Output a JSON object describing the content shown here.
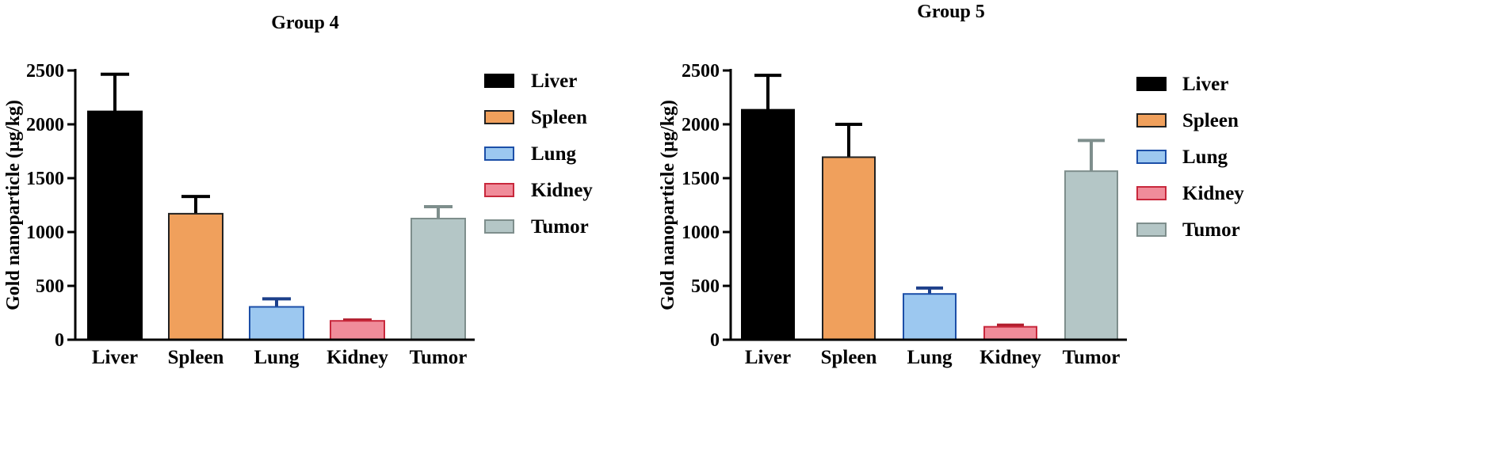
{
  "chart_data": [
    {
      "type": "bar",
      "title": "Group 4",
      "ylabel": "Gold nanoparticle (µg/kg)",
      "xlabel": "",
      "categories": [
        "Liver",
        "Spleen",
        "Lung",
        "Kidney",
        "Tumor"
      ],
      "values": [
        2120,
        1170,
        305,
        175,
        1125
      ],
      "errors": [
        345,
        160,
        75,
        8,
        110
      ],
      "ylim": [
        0,
        2500
      ],
      "yticks": [
        "0",
        "500",
        "1000",
        "1500",
        "2000",
        "2500"
      ],
      "legend": [
        "Liver",
        "Spleen",
        "Lung",
        "Kidney",
        "Tumor"
      ],
      "legend_position": "right",
      "grid": false
    },
    {
      "type": "bar",
      "title": "Group 5",
      "ylabel": "Gold nanoparticle (µg/kg)",
      "xlabel": "",
      "categories": [
        "Liver",
        "Spleen",
        "Lung",
        "Kidney",
        "Tumor"
      ],
      "values": [
        2135,
        1695,
        425,
        120,
        1565
      ],
      "errors": [
        320,
        305,
        55,
        15,
        285
      ],
      "ylim": [
        0,
        2500
      ],
      "yticks": [
        "0",
        "500",
        "1000",
        "1500",
        "2000",
        "2500"
      ],
      "legend": [
        "Liver",
        "Spleen",
        "Lung",
        "Kidney",
        "Tumor"
      ],
      "legend_position": "right",
      "grid": false
    }
  ],
  "colors": {
    "Liver": {
      "fill": "#000000",
      "stroke": "#000000",
      "error": "#000000"
    },
    "Spleen": {
      "fill": "#f0a05c",
      "stroke": "#222222",
      "error": "#000000"
    },
    "Lung": {
      "fill": "#9cc8f0",
      "stroke": "#1c4fa8",
      "error": "#1c3f8a"
    },
    "Kidney": {
      "fill": "#f08c9a",
      "stroke": "#c8283c",
      "error": "#b01c2c"
    },
    "Tumor": {
      "fill": "#b4c6c6",
      "stroke": "#7e8e8c",
      "error": "#7e8e8c"
    }
  },
  "axis_color": "#000000"
}
